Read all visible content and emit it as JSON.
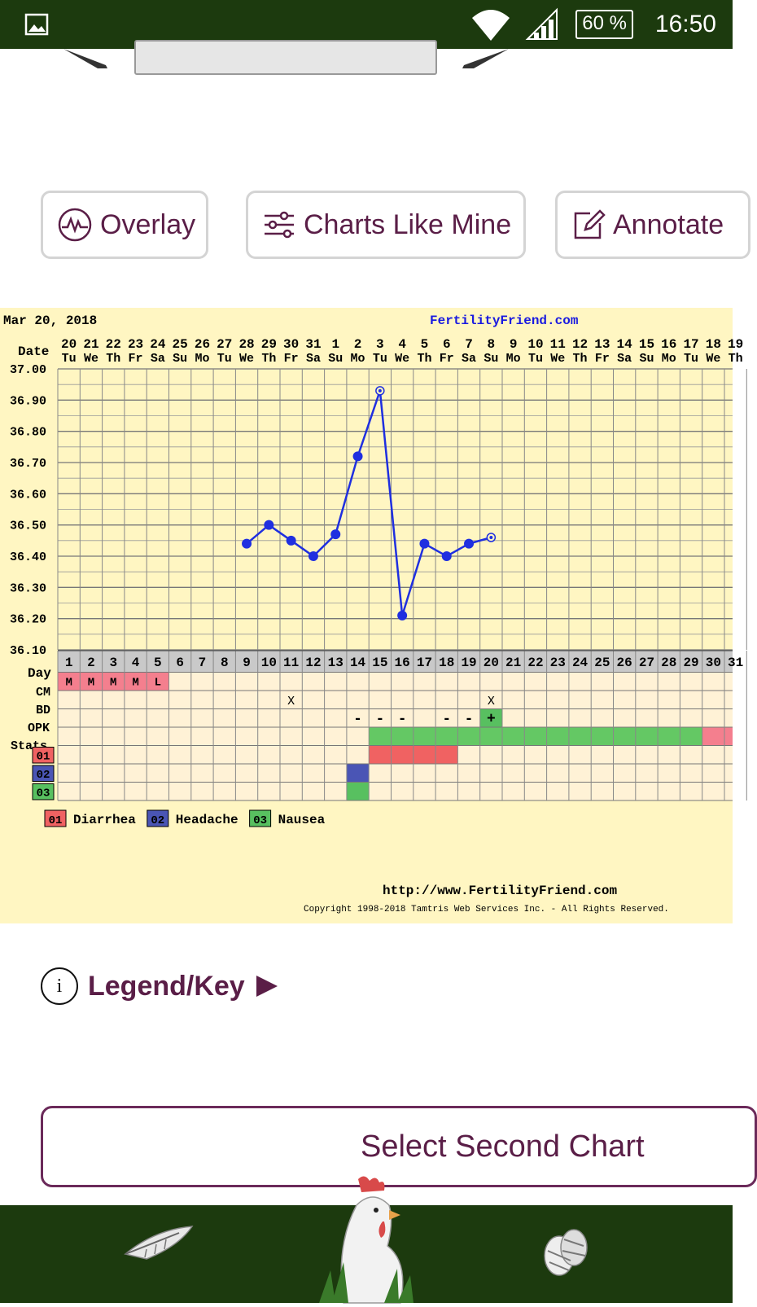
{
  "status_bar": {
    "time": "16:50",
    "battery": "60 %"
  },
  "actions": {
    "overlay": "Overlay",
    "charts_like_mine": "Charts Like Mine",
    "annotate": "Annotate"
  },
  "legend_key": {
    "label": "Legend/Key"
  },
  "select_second_chart": "Select Second Chart",
  "colors": {
    "brand_dark_green": "#1c3a0e",
    "accent_purple": "#5a1e47",
    "chart_bg": "#fff6c2",
    "line_blue": "#1f2fe0"
  },
  "bottom_nav": {
    "icons": [
      "feather-icon",
      "rooster-icon",
      "eggs-icon"
    ]
  },
  "chart": {
    "header_date": "Mar 20, 2018",
    "site": "FertilityFriend.com",
    "footer_url": "http://www.FertilityFriend.com",
    "copyright": "Copyright 1998-2018 Tamtris Web Services Inc. - All Rights Reserved.",
    "row_labels": {
      "date": "Date",
      "day": "Day",
      "cm": "CM",
      "bd": "BD",
      "opk": "OPK",
      "stats": "Stats"
    },
    "symptom_legend": [
      {
        "code": "01",
        "label": "Diarrhea",
        "color": "#f06262"
      },
      {
        "code": "02",
        "label": "Headache",
        "color": "#4a55b5"
      },
      {
        "code": "03",
        "label": "Nausea",
        "color": "#58c060"
      }
    ],
    "dates": [
      "20",
      "21",
      "22",
      "23",
      "24",
      "25",
      "26",
      "27",
      "28",
      "29",
      "30",
      "31",
      "1",
      "2",
      "3",
      "4",
      "5",
      "6",
      "7",
      "8",
      "9",
      "10",
      "11",
      "12",
      "13",
      "14",
      "15",
      "16",
      "17",
      "18",
      "19"
    ],
    "weekdays": [
      "Tu",
      "We",
      "Th",
      "Fr",
      "Sa",
      "Su",
      "Mo",
      "Tu",
      "We",
      "Th",
      "Fr",
      "Sa",
      "Su",
      "Mo",
      "Tu",
      "We",
      "Th",
      "Fr",
      "Sa",
      "Su",
      "Mo",
      "Tu",
      "We",
      "Th",
      "Fr",
      "Sa",
      "Su",
      "Mo",
      "Tu",
      "We",
      "Th"
    ],
    "days": [
      "1",
      "2",
      "3",
      "4",
      "5",
      "6",
      "7",
      "8",
      "9",
      "10",
      "11",
      "12",
      "13",
      "14",
      "15",
      "16",
      "17",
      "18",
      "19",
      "20",
      "21",
      "22",
      "23",
      "24",
      "25",
      "26",
      "27",
      "28",
      "29",
      "30",
      "31"
    ],
    "cm": [
      "M",
      "M",
      "M",
      "M",
      "L"
    ],
    "bd_days": [
      11,
      20
    ],
    "opk": [
      {
        "day": 14,
        "v": "-"
      },
      {
        "day": 15,
        "v": "-"
      },
      {
        "day": 16,
        "v": "-"
      },
      {
        "day": 18,
        "v": "-"
      },
      {
        "day": 19,
        "v": "-"
      },
      {
        "day": 20,
        "v": "+"
      }
    ],
    "stats_green_from_day": 15,
    "stats_green_to_day": 29,
    "stats_pink_from_day": 30,
    "symptom_days": {
      "01": [
        15,
        16,
        17,
        18
      ],
      "02": [
        14
      ],
      "03": [
        14
      ]
    }
  },
  "chart_data": {
    "type": "line",
    "title": "",
    "xlabel": "Day",
    "ylabel": "",
    "ylim": [
      36.1,
      37.0
    ],
    "yticks": [
      "37.00",
      "36.90",
      "36.80",
      "36.70",
      "36.60",
      "36.50",
      "36.40",
      "36.30",
      "36.20",
      "36.10"
    ],
    "series": [
      {
        "points": [
          {
            "x": 9,
            "y": 36.44
          },
          {
            "x": 10,
            "y": 36.5
          },
          {
            "x": 11,
            "y": 36.45
          },
          {
            "x": 12,
            "y": 36.4
          },
          {
            "x": 13,
            "y": 36.47
          },
          {
            "x": 14,
            "y": 36.72
          },
          {
            "x": 15,
            "y": 36.93
          },
          {
            "x": 16,
            "y": 36.21
          },
          {
            "x": 17,
            "y": 36.44
          },
          {
            "x": 18,
            "y": 36.4
          },
          {
            "x": 19,
            "y": 36.44
          },
          {
            "x": 20,
            "y": 36.46
          }
        ],
        "open_points": [
          15,
          20
        ]
      }
    ]
  }
}
